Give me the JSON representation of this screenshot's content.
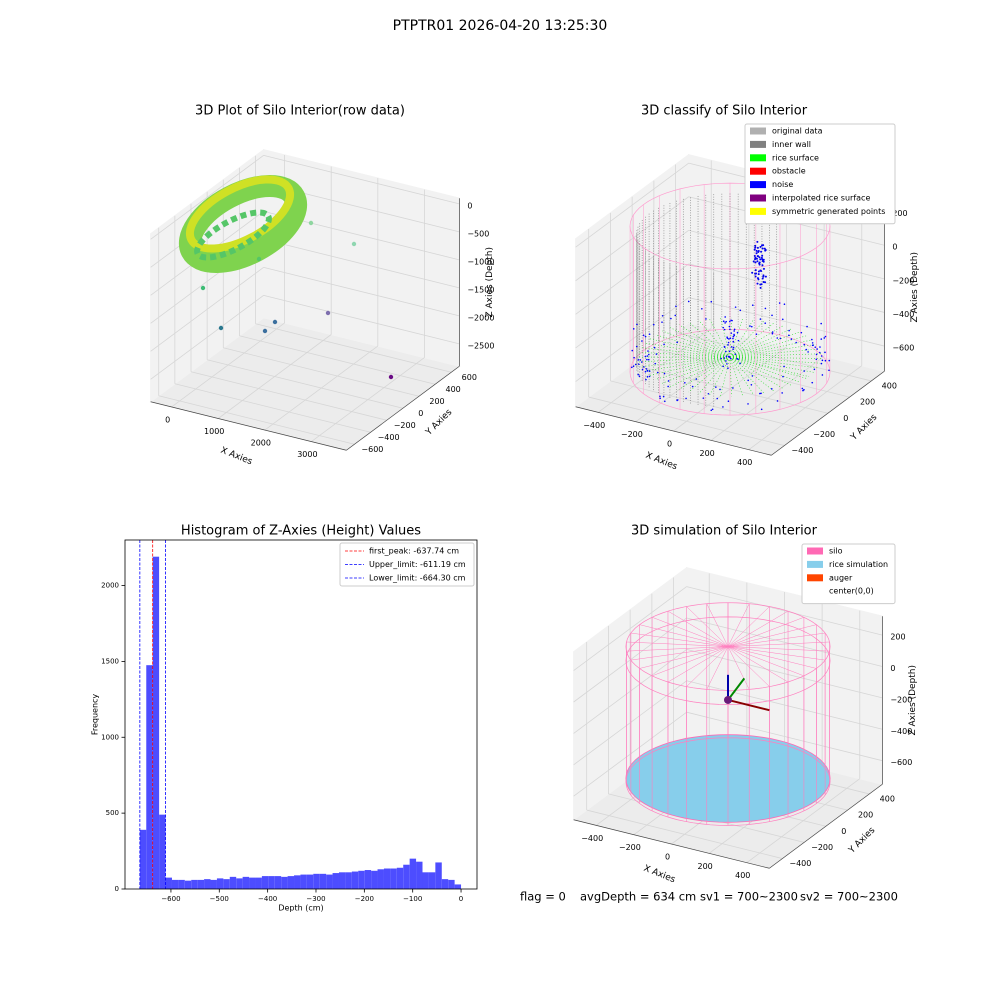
{
  "title": "PTPTR01 2026-04-20 13:25:30",
  "footer": [
    "flag = 0",
    "avgDepth = 634 cm",
    "sv1 = 700~2300",
    "sv2 = 700~2300"
  ],
  "chart_data": [
    {
      "type": "scatter3d",
      "title": "3D Plot of Silo Interior(row data)",
      "xlabel": "X Axies",
      "ylabel": "Y Axies",
      "zlabel": "Z Axies (Depth)",
      "xlim": [
        -450,
        3750
      ],
      "ylim": [
        -700,
        700
      ],
      "zlim": [
        -2900,
        100
      ],
      "xticks": [
        0,
        1000,
        2000,
        3000
      ],
      "yticks": [
        {
          "value": -600,
          "label": "−600"
        },
        {
          "value": -400,
          "label": "−400"
        },
        {
          "value": -200,
          "label": "−200"
        },
        0,
        200,
        400,
        600
      ],
      "zticks": [
        0,
        {
          "value": -500,
          "label": "−500"
        },
        {
          "value": -1000,
          "label": "−1000"
        },
        {
          "value": -1500,
          "label": "−1500"
        },
        {
          "value": -2000,
          "label": "−2000"
        },
        {
          "value": -2500,
          "label": "−2500"
        }
      ],
      "grid": true
    },
    {
      "type": "scatter3d",
      "title": "3D classify of Silo Interior",
      "xlabel": "X Axies",
      "ylabel": "Y Axies",
      "zlabel": "Z Axies (Depth)",
      "xlim": [
        -520,
        520
      ],
      "ylim": [
        -520,
        520
      ],
      "zlim": [
        -750,
        250
      ],
      "xticks": [
        {
          "value": -400,
          "label": "−400"
        },
        {
          "value": -200,
          "label": "−200"
        },
        0,
        200,
        400
      ],
      "yticks": [
        {
          "value": -400,
          "label": "−400"
        },
        {
          "value": -200,
          "label": "−200"
        },
        0,
        200,
        400
      ],
      "zticks": [
        200,
        0,
        {
          "value": -200,
          "label": "−200"
        },
        {
          "value": -400,
          "label": "−400"
        },
        {
          "value": -600,
          "label": "−600"
        }
      ],
      "grid": true,
      "legend": {
        "corner": "upper right",
        "items": [
          {
            "name": "original data",
            "color": "#b0b0b0"
          },
          {
            "name": "inner wall",
            "color": "#808080"
          },
          {
            "name": "rice surface",
            "color": "#00ff00"
          },
          {
            "name": "obstacle",
            "color": "#ff0000"
          },
          {
            "name": "noise",
            "color": "#0000ff"
          },
          {
            "name": "interpolated rice surface",
            "color": "#800080"
          },
          {
            "name": "symmetric generated points",
            "color": "#ffff00"
          }
        ]
      }
    },
    {
      "type": "histogram",
      "title": "Histogram of Z-Axies (Height) Values",
      "xlabel": "Depth (cm)",
      "ylabel": "Frequency",
      "color": "#4d4dff",
      "bins": [
        -664.3,
        -651.01,
        -637.73,
        -624.44,
        -611.16,
        -597.87,
        -584.58,
        -571.3,
        -558.01,
        -544.73,
        -531.44,
        -518.15,
        -504.87,
        -491.58,
        -478.3,
        -465.01,
        -451.72,
        -438.44,
        -425.15,
        -411.87,
        -398.58,
        -385.29,
        -372.01,
        -358.72,
        -345.44,
        -332.15,
        -318.86,
        -305.58,
        -292.29,
        -279.01,
        -265.72,
        -252.43,
        -239.15,
        -225.86,
        -212.58,
        -199.29,
        -186.0,
        -172.72,
        -159.43,
        -146.15,
        -132.86,
        -119.57,
        -106.29,
        -93.0,
        -79.72,
        -66.43,
        -53.14,
        -39.86,
        -26.57,
        -13.29,
        0
      ],
      "values": [
        390,
        1475,
        2190,
        490,
        75,
        60,
        60,
        55,
        60,
        60,
        65,
        60,
        70,
        65,
        80,
        70,
        80,
        75,
        75,
        85,
        85,
        85,
        80,
        85,
        90,
        95,
        95,
        100,
        100,
        95,
        105,
        110,
        110,
        115,
        120,
        125,
        120,
        130,
        135,
        135,
        140,
        160,
        200,
        180,
        110,
        110,
        175,
        65,
        60,
        30
      ],
      "xlim": [
        -695,
        33
      ],
      "ylim": [
        0,
        2300
      ],
      "xticks": [
        {
          "value": -600,
          "label": "−600"
        },
        {
          "value": -500,
          "label": "−500"
        },
        {
          "value": -400,
          "label": "−400"
        },
        {
          "value": -300,
          "label": "−300"
        },
        {
          "value": -200,
          "label": "−200"
        },
        {
          "value": -100,
          "label": "−100"
        },
        0
      ],
      "yticks": [
        0,
        500,
        1000,
        1500,
        2000
      ],
      "lines": [
        {
          "name": "first_peak: -637.74 cm",
          "value": -637.74,
          "color": "#ff0000"
        },
        {
          "name": "Upper_limit: -611.19 cm",
          "value": -611.19,
          "color": "#0000ff"
        },
        {
          "name": "Lower_limit: -664.30 cm",
          "value": -664.3,
          "color": "#0000ff"
        }
      ],
      "legend_corner": "upper right"
    },
    {
      "type": "scatter3d",
      "title": "3D simulation of Silo Interior",
      "xlabel": "X Axies",
      "ylabel": "Y Axies",
      "zlabel": "Z Axies (Depth)",
      "xlim": [
        -520,
        520
      ],
      "ylim": [
        -520,
        520
      ],
      "zlim": [
        -750,
        320
      ],
      "xticks": [
        {
          "value": -400,
          "label": "−400"
        },
        {
          "value": -200,
          "label": "−200"
        },
        0,
        200,
        400
      ],
      "yticks": [
        {
          "value": -400,
          "label": "−400"
        },
        {
          "value": -200,
          "label": "−200"
        },
        0,
        200,
        400
      ],
      "zticks": [
        200,
        0,
        {
          "value": -200,
          "label": "−200"
        },
        {
          "value": -400,
          "label": "−400"
        },
        {
          "value": -600,
          "label": "−600"
        }
      ],
      "grid": true,
      "legend": {
        "corner": "upper right",
        "items": [
          {
            "name": "silo",
            "color": "#ff69b4"
          },
          {
            "name": "rice simulation",
            "color": "#87ceeb"
          },
          {
            "name": "auger",
            "color": "#ff4500"
          },
          {
            "name": "center(0,0)",
            "color": "#ffffff"
          }
        ]
      }
    }
  ]
}
